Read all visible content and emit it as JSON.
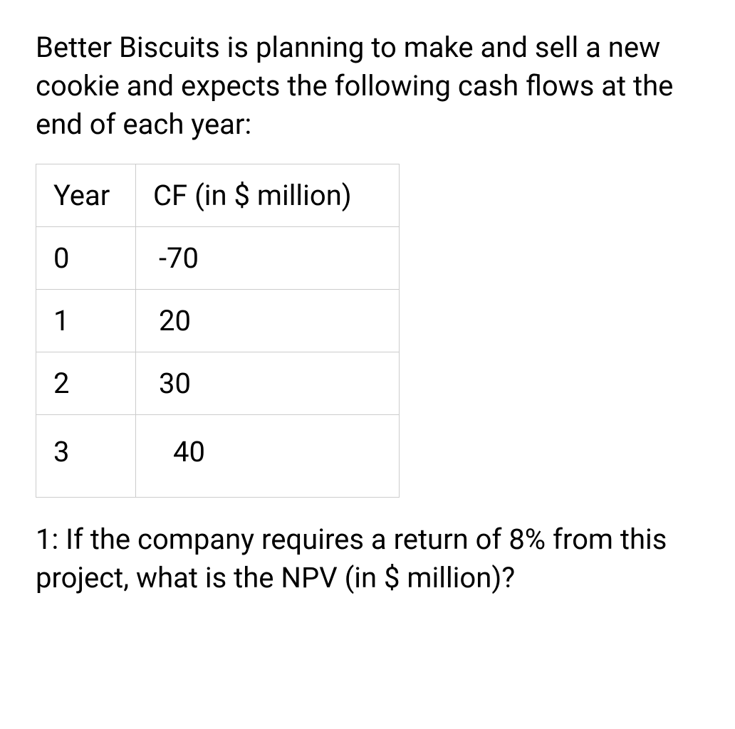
{
  "intro_text": "Better Biscuits is planning to make and sell a new cookie and expects the following cash flows at the end of each year:",
  "table": {
    "columns": [
      "Year",
      "CF (in $ million)"
    ],
    "rows": [
      [
        "0",
        "-70"
      ],
      [
        "1",
        "20"
      ],
      [
        "2",
        "30"
      ],
      [
        "3",
        "40"
      ]
    ],
    "border_color": "#cccccc",
    "text_color": "#000000",
    "font_size": 40
  },
  "question_text": "1: If the company requires a return of 8% from this project, what is the NPV (in $ million)?",
  "background_color": "#ffffff"
}
